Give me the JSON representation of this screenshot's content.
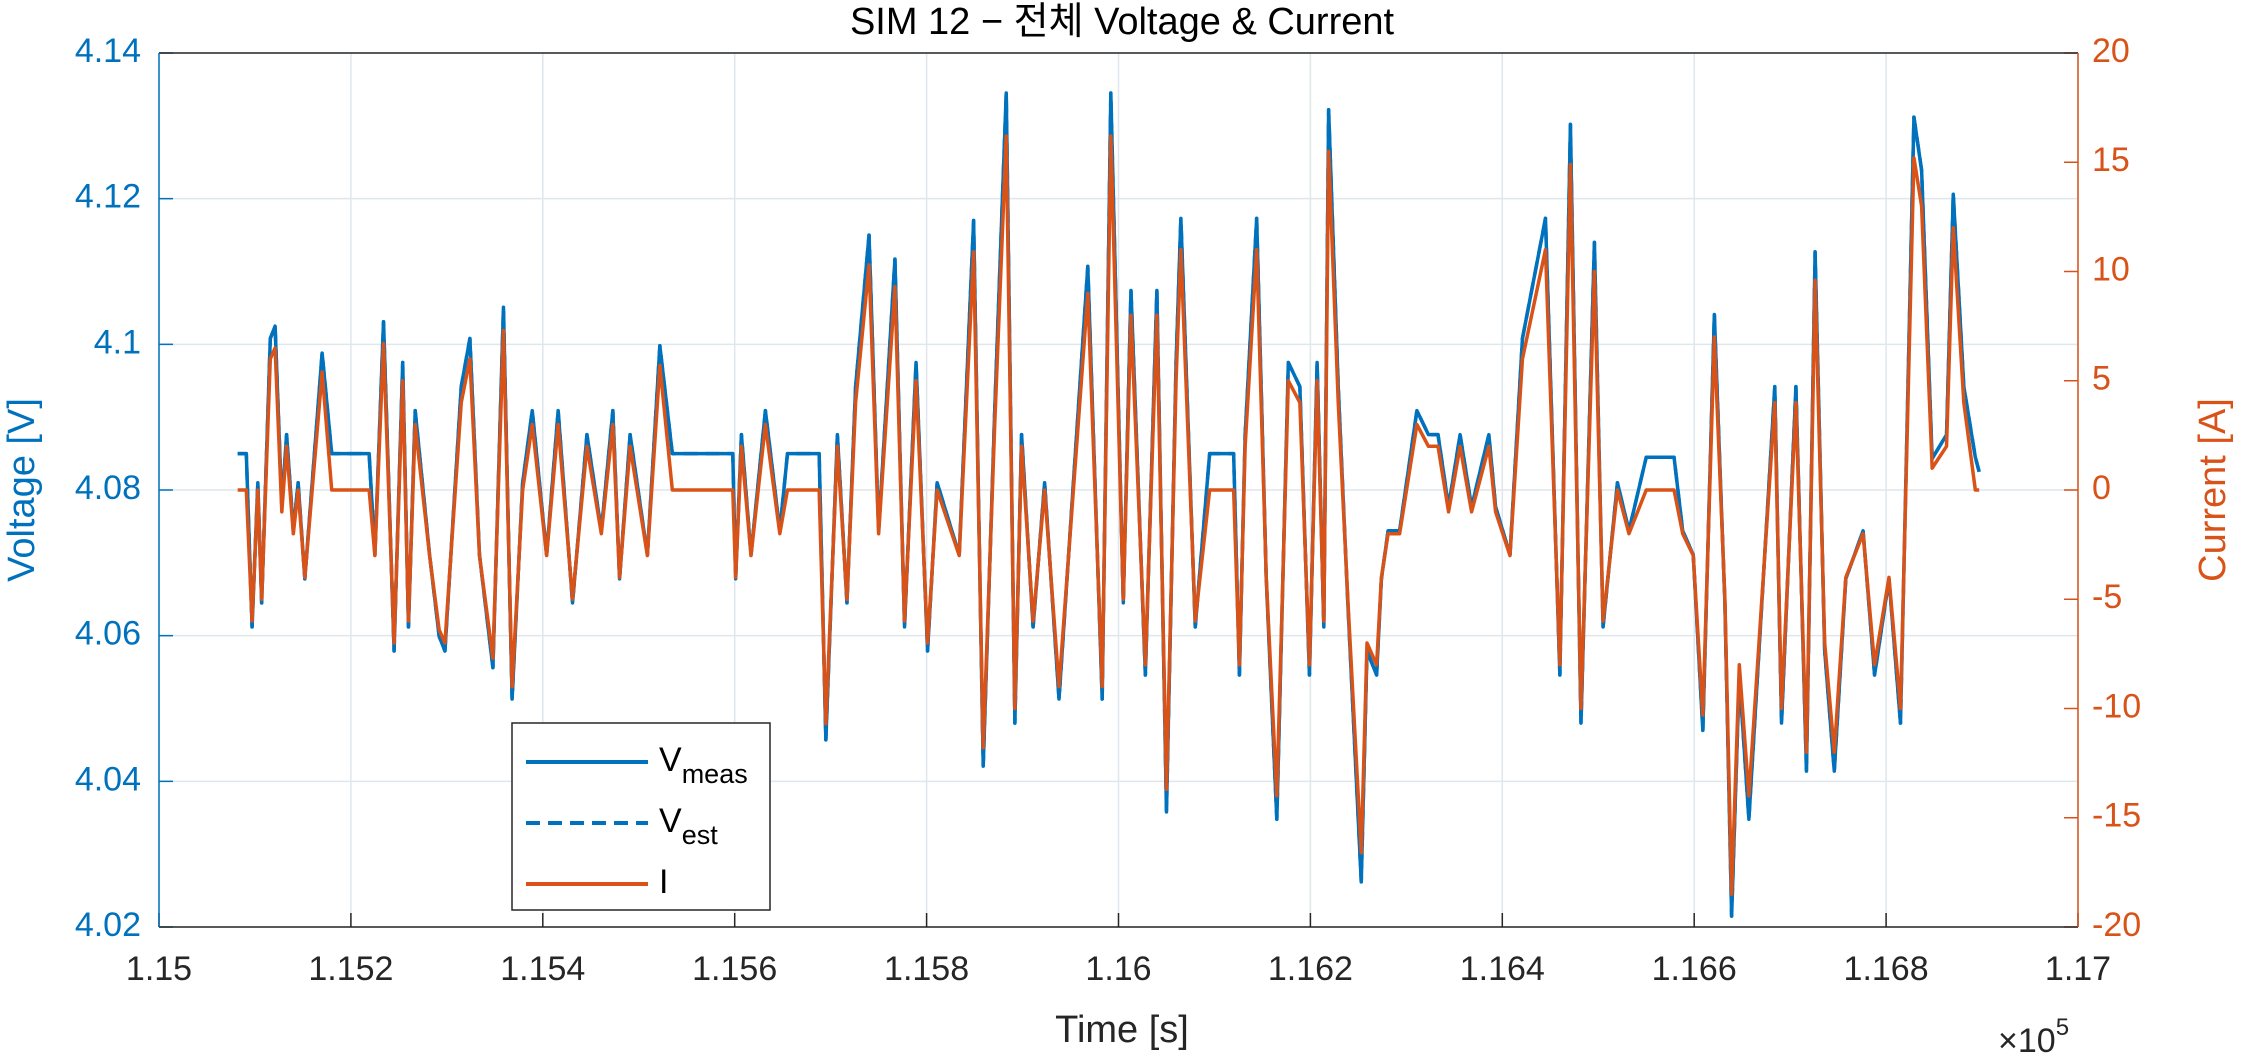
{
  "chart_data": {
    "type": "line",
    "title": "SIM 12 − 전체 Voltage & Current",
    "xlabel": "Time [s]",
    "ylabel": "Voltage [V]",
    "y2label": "Current [A]",
    "x_multiplier": "×10",
    "x_multiplier_exponent": "5",
    "xlim": [
      115000,
      117000
    ],
    "xticks": [
      {
        "value": 115000,
        "label": "1.15"
      },
      {
        "value": 115200,
        "label": "1.152"
      },
      {
        "value": 115400,
        "label": "1.154"
      },
      {
        "value": 115600,
        "label": "1.156"
      },
      {
        "value": 115800,
        "label": "1.158"
      },
      {
        "value": 116000,
        "label": "1.16"
      },
      {
        "value": 116200,
        "label": "1.162"
      },
      {
        "value": 116400,
        "label": "1.164"
      },
      {
        "value": 116600,
        "label": "1.166"
      },
      {
        "value": 116800,
        "label": "1.168"
      },
      {
        "value": 117000,
        "label": "1.17"
      }
    ],
    "ylim": [
      4.02,
      4.14
    ],
    "yticks": [
      4.02,
      4.04,
      4.06,
      4.08,
      4.1,
      4.12,
      4.14
    ],
    "y2lim": [
      -20,
      20
    ],
    "y2ticks": [
      -20,
      -15,
      -10,
      -5,
      0,
      5,
      10,
      15,
      20
    ],
    "grid": true,
    "legend_position": "lower-left",
    "x": [
      115082,
      115091,
      115097,
      115103,
      115107,
      115116,
      115121,
      115128,
      115133,
      115140,
      115145,
      115152,
      115170,
      115180,
      115219,
      115225,
      115234,
      115245,
      115254,
      115260,
      115267,
      115282,
      115292,
      115298,
      115315,
      115324,
      115334,
      115348,
      115359,
      115368,
      115379,
      115389,
      115404,
      115416,
      115431,
      115446,
      115461,
      115473,
      115480,
      115491,
      115509,
      115522,
      115535,
      115598,
      115601,
      115607,
      115617,
      115632,
      115647,
      115655,
      115688,
      115695,
      115707,
      115717,
      115726,
      115740,
      115750,
      115767,
      115777,
      115789,
      115801,
      115811,
      115834,
      115849,
      115859,
      115871,
      115883,
      115892,
      115899,
      115911,
      115923,
      115938,
      115953,
      115968,
      115983,
      115992,
      116005,
      116013,
      116028,
      116040,
      116050,
      116060,
      116065,
      116080,
      116095,
      116120,
      116126,
      116132,
      116144,
      116154,
      116165,
      116177,
      116189,
      116199,
      116207,
      116214,
      116219,
      116229,
      116239,
      116253,
      116259,
      116269,
      116274,
      116281,
      116293,
      116311,
      116323,
      116333,
      116344,
      116356,
      116368,
      116386,
      116393,
      116408,
      116421,
      116445,
      116460,
      116471,
      116482,
      116496,
      116505,
      116520,
      116532,
      116550,
      116579,
      116588,
      116599,
      116609,
      116621,
      116632,
      116639,
      116647,
      116657,
      116666,
      116684,
      116691,
      116706,
      116717,
      116726,
      116736,
      116746,
      116758,
      116776,
      116788,
      116803,
      116815,
      116829,
      116837,
      116848,
      116863,
      116870,
      116881,
      116893,
      116897
    ],
    "series": [
      {
        "name": "V",
        "name_subscript": "meas",
        "color": "#0072BD",
        "line_style": "solid",
        "axis": "y",
        "values": [
          4.085,
          4.085,
          4.0612,
          4.081,
          4.0645,
          4.1008,
          4.1025,
          4.0777,
          4.0876,
          4.0744,
          4.081,
          4.0678,
          4.0988,
          4.085,
          4.085,
          4.0711,
          4.1031,
          4.0579,
          4.0975,
          4.0612,
          4.0909,
          4.0711,
          4.0599,
          4.0579,
          4.0942,
          4.1008,
          4.0711,
          4.0556,
          4.1051,
          4.0513,
          4.081,
          4.0909,
          4.0711,
          4.0909,
          4.0645,
          4.0876,
          4.0744,
          4.0909,
          4.0678,
          4.0876,
          4.0711,
          4.0998,
          4.085,
          4.085,
          4.0678,
          4.0876,
          4.0711,
          4.0909,
          4.0744,
          4.085,
          4.085,
          4.0457,
          4.0876,
          4.0645,
          4.0942,
          4.115,
          4.0744,
          4.1117,
          4.0612,
          4.0975,
          4.0579,
          4.081,
          4.0711,
          4.117,
          4.0421,
          4.0909,
          4.1345,
          4.048,
          4.0876,
          4.0612,
          4.081,
          4.0513,
          4.081,
          4.1107,
          4.0513,
          4.1345,
          4.0645,
          4.1074,
          4.0546,
          4.1074,
          4.0358,
          4.0975,
          4.1173,
          4.0612,
          4.085,
          4.085,
          4.0546,
          4.0876,
          4.1173,
          4.0678,
          4.0348,
          4.0975,
          4.0942,
          4.0546,
          4.0975,
          4.0612,
          4.1322,
          4.0942,
          4.0645,
          4.0262,
          4.0579,
          4.0546,
          4.0678,
          4.0744,
          4.0744,
          4.0909,
          4.0876,
          4.0876,
          4.0777,
          4.0876,
          4.0777,
          4.0876,
          4.0777,
          4.0711,
          4.1008,
          4.1173,
          4.0546,
          4.1302,
          4.048,
          4.114,
          4.0612,
          4.081,
          4.0744,
          4.0845,
          4.0845,
          4.0744,
          4.0711,
          4.047,
          4.1041,
          4.0645,
          4.0215,
          4.0546,
          4.0348,
          4.0546,
          4.0942,
          4.048,
          4.0942,
          4.0414,
          4.1127,
          4.0579,
          4.0414,
          4.0678,
          4.0744,
          4.0546,
          4.0678,
          4.048,
          4.1312,
          4.1239,
          4.0843,
          4.0876,
          4.1206,
          4.0942,
          4.0845,
          4.0825
        ]
      },
      {
        "name": "V",
        "name_subscript": "est",
        "color": "#0072BD",
        "line_style": "dashed",
        "axis": "y",
        "values": [
          4.085,
          4.085,
          4.0612,
          4.081,
          4.0645,
          4.1008,
          4.1025,
          4.0777,
          4.0876,
          4.0744,
          4.081,
          4.0678,
          4.0988,
          4.085,
          4.085,
          4.0711,
          4.1031,
          4.0579,
          4.0975,
          4.0612,
          4.0909,
          4.0711,
          4.0599,
          4.0579,
          4.0942,
          4.1008,
          4.0711,
          4.0556,
          4.1051,
          4.0513,
          4.081,
          4.0909,
          4.0711,
          4.0909,
          4.0645,
          4.0876,
          4.0744,
          4.0909,
          4.0678,
          4.0876,
          4.0711,
          4.0998,
          4.085,
          4.085,
          4.0678,
          4.0876,
          4.0711,
          4.0909,
          4.0744,
          4.085,
          4.085,
          4.0457,
          4.0876,
          4.0645,
          4.0942,
          4.115,
          4.0744,
          4.1117,
          4.0612,
          4.0975,
          4.0579,
          4.081,
          4.0711,
          4.117,
          4.0421,
          4.0909,
          4.1345,
          4.048,
          4.0876,
          4.0612,
          4.081,
          4.0513,
          4.081,
          4.1107,
          4.0513,
          4.1345,
          4.0645,
          4.1074,
          4.0546,
          4.1074,
          4.0358,
          4.0975,
          4.1173,
          4.0612,
          4.085,
          4.085,
          4.0546,
          4.0876,
          4.1173,
          4.0678,
          4.0348,
          4.0975,
          4.0942,
          4.0546,
          4.0975,
          4.0612,
          4.1322,
          4.0942,
          4.0645,
          4.0262,
          4.0579,
          4.0546,
          4.0678,
          4.0744,
          4.0744,
          4.0909,
          4.0876,
          4.0876,
          4.0777,
          4.0876,
          4.0777,
          4.0876,
          4.0777,
          4.0711,
          4.1008,
          4.1173,
          4.0546,
          4.1302,
          4.048,
          4.114,
          4.0612,
          4.081,
          4.0744,
          4.0845,
          4.0845,
          4.0744,
          4.0711,
          4.047,
          4.1041,
          4.0645,
          4.0215,
          4.0546,
          4.0348,
          4.0546,
          4.0942,
          4.048,
          4.0942,
          4.0414,
          4.1127,
          4.0579,
          4.0414,
          4.0678,
          4.0744,
          4.0546,
          4.0678,
          4.048,
          4.1312,
          4.1239,
          4.0843,
          4.0876,
          4.1206,
          4.0942,
          4.0845,
          4.0825
        ]
      },
      {
        "name": "I",
        "color": "#D95319",
        "line_style": "solid",
        "axis": "y2",
        "values": [
          0,
          0,
          -6,
          0,
          -5,
          6,
          6.5,
          -1,
          2,
          -2,
          0,
          -4,
          5.4,
          0,
          0,
          -3,
          6.7,
          -7,
          5,
          -6,
          3,
          -3,
          -6.4,
          -7,
          4,
          6,
          -3,
          -7.7,
          7.3,
          -9,
          0,
          3,
          -3,
          3,
          -5,
          2,
          -2,
          3,
          -4,
          2,
          -3,
          5.7,
          0,
          0,
          -4,
          2,
          -3,
          3,
          -2,
          0,
          0,
          -10.7,
          2,
          -5,
          4,
          10.3,
          -2,
          9.3,
          -6,
          5,
          -7,
          0,
          -3,
          10.9,
          -11.8,
          3,
          16.2,
          -10,
          2,
          -6,
          0,
          -9,
          0,
          9,
          -9,
          16.2,
          -5,
          8,
          -8,
          8,
          -13.7,
          5,
          11,
          -6,
          0,
          0,
          -8,
          2,
          11,
          -4,
          -14,
          5,
          4,
          -8,
          5,
          -6,
          15.5,
          4,
          -5,
          -16.6,
          -7,
          -8,
          -4,
          -2,
          -2,
          3,
          2,
          2,
          -1,
          2,
          -1,
          2,
          -1,
          -3,
          6,
          11,
          -8,
          14.9,
          -10,
          10,
          -6,
          0,
          -2,
          0,
          0,
          -2,
          -3,
          -10.3,
          7,
          -5,
          -18.5,
          -8,
          -14,
          -8,
          4,
          -10,
          4,
          -12,
          9.6,
          -7,
          -12,
          -4,
          -2,
          -8,
          -4,
          -10,
          15.2,
          13,
          1,
          2,
          12,
          4,
          0,
          0
        ]
      }
    ]
  }
}
